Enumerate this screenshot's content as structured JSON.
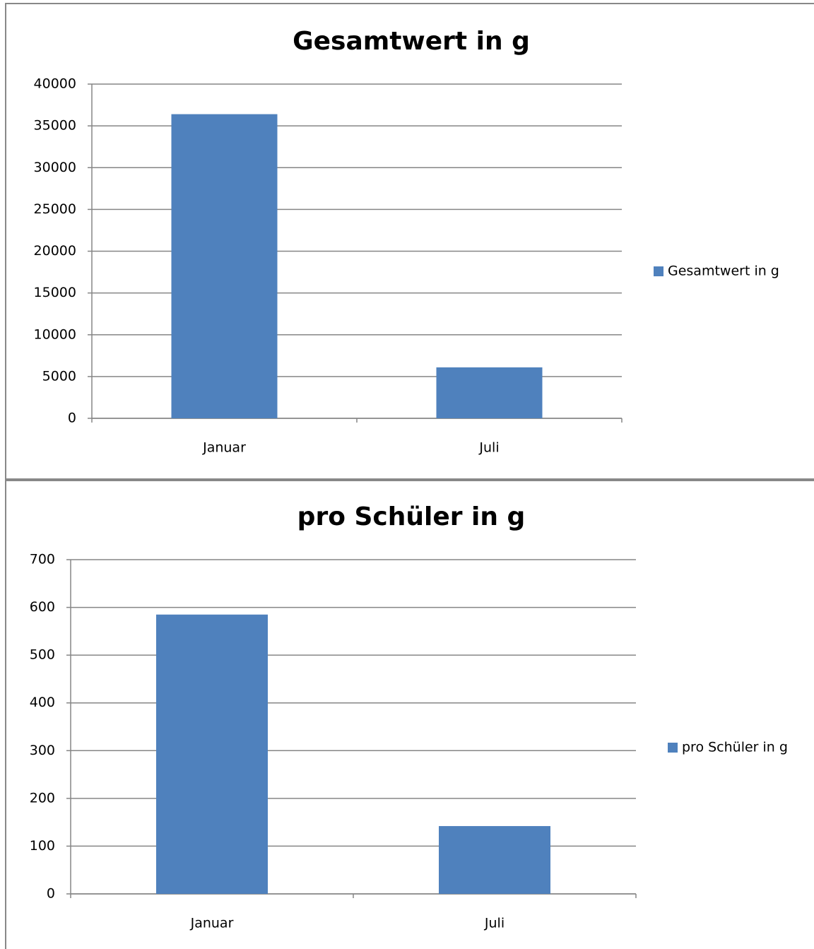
{
  "chart_data": [
    {
      "type": "bar",
      "title": "Gesamtwert in g",
      "categories": [
        "Januar",
        "Juli"
      ],
      "series": [
        {
          "name": "Gesamtwert in g",
          "color": "#4f81bd",
          "values": [
            36400,
            6100
          ]
        }
      ],
      "ylim": [
        0,
        40000
      ],
      "yticks": [
        0,
        5000,
        10000,
        15000,
        20000,
        25000,
        30000,
        35000,
        40000
      ],
      "grid": true,
      "legend": "right"
    },
    {
      "type": "bar",
      "title": "pro Schüler in g",
      "categories": [
        "Januar",
        "Juli"
      ],
      "series": [
        {
          "name": "pro Schüler in g",
          "color": "#4f81bd",
          "values": [
            585,
            142
          ]
        }
      ],
      "ylim": [
        0,
        700
      ],
      "yticks": [
        0,
        100,
        200,
        300,
        400,
        500,
        600,
        700
      ],
      "grid": true,
      "legend": "right"
    }
  ]
}
